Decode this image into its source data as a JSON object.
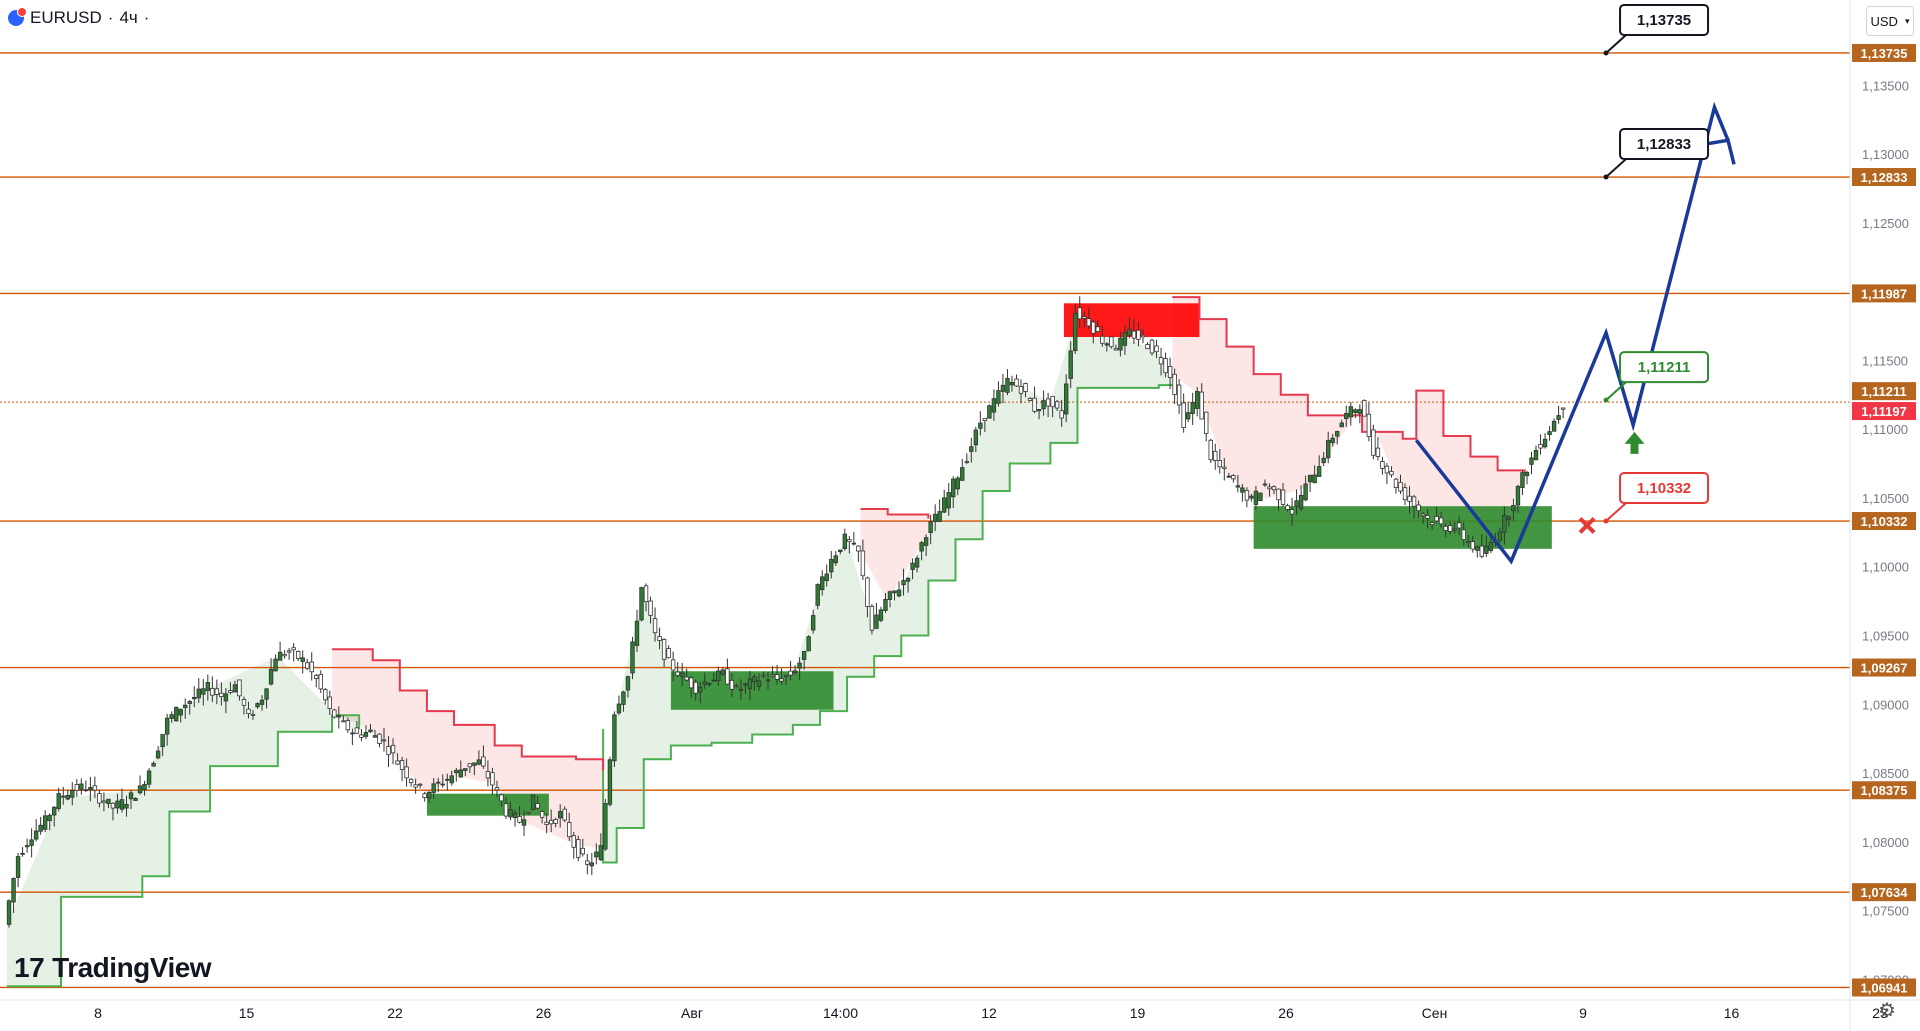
{
  "header": {
    "symbol": "EURUSD",
    "separator": "·",
    "interval": "4ч",
    "currency": "USD"
  },
  "branding": {
    "logo_text": "TradingView",
    "logo_mark": "17"
  },
  "colors": {
    "level_line": "#d35400",
    "level_label_bg": "#b5651d",
    "bull": "#2e8b2e",
    "bear": "#e53935",
    "zone_green": "#2e8b2e",
    "zone_red": "#ff0000",
    "projection": "#1a3a9a",
    "current_price_bg": "#f23645"
  },
  "icons": {
    "settings": "gear-icon",
    "logo": "tradingview-logo-icon",
    "target_arrow": "up-arrow-icon",
    "stop": "cross-icon"
  },
  "chart_data": {
    "type": "candlestick",
    "y_ticks": [
      "1,13500",
      "1,13000",
      "1,12500",
      "1,11500",
      "1,11000",
      "1,10500",
      "1,10000",
      "1,09500",
      "1,09000",
      "1,08500",
      "1,08000",
      "1,07500",
      "1,07000"
    ],
    "y_tick_values": [
      1.135,
      1.13,
      1.125,
      1.115,
      1.11,
      1.105,
      1.1,
      1.095,
      1.09,
      1.085,
      1.08,
      1.075,
      1.07
    ],
    "ylim": [
      1.0685,
      1.1412
    ],
    "x_ticks": [
      "8",
      "15",
      "22",
      "26",
      "Авг",
      "14:00",
      "12",
      "19",
      "26",
      "Сен",
      "9",
      "16",
      "23"
    ],
    "levels": [
      {
        "label": "1,13735",
        "value": 1.13735
      },
      {
        "label": "1,12833",
        "value": 1.12833
      },
      {
        "label": "1,11987",
        "value": 1.11987
      },
      {
        "label": "1,10332",
        "value": 1.10332
      },
      {
        "label": "1,09267",
        "value": 1.09267
      },
      {
        "label": "1,08375",
        "value": 1.08375
      },
      {
        "label": "1,07634",
        "value": 1.07634
      },
      {
        "label": "1,06941",
        "value": 1.06941
      }
    ],
    "price_labels": [
      {
        "label": "1,11211",
        "value": 1.11211,
        "style": "green"
      },
      {
        "label": "1,11197",
        "value": 1.11197,
        "style": "current"
      }
    ],
    "callouts": [
      {
        "label": "1,13735",
        "value": 1.13735,
        "style": "black"
      },
      {
        "label": "1,12833",
        "value": 1.12833,
        "style": "black"
      },
      {
        "label": "1,11211",
        "value": 1.11211,
        "style": "green"
      },
      {
        "label": "1,10332",
        "value": 1.10332,
        "style": "red"
      }
    ],
    "close_path": [
      [
        0,
        1.074
      ],
      [
        1,
        1.079
      ],
      [
        2,
        1.0805
      ],
      [
        3,
        1.0815
      ],
      [
        4,
        1.0832
      ],
      [
        5,
        1.0838
      ],
      [
        6,
        1.084
      ],
      [
        7,
        1.0832
      ],
      [
        8,
        1.0825
      ],
      [
        9,
        1.083
      ],
      [
        10,
        1.0838
      ],
      [
        11,
        1.086
      ],
      [
        12,
        1.0888
      ],
      [
        13,
        1.0898
      ],
      [
        14,
        1.0905
      ],
      [
        15,
        1.0912
      ],
      [
        16,
        1.0906
      ],
      [
        17,
        1.0914
      ],
      [
        18,
        1.089
      ],
      [
        19,
        1.0905
      ],
      [
        20,
        1.0935
      ],
      [
        21,
        1.0938
      ],
      [
        22,
        1.0932
      ],
      [
        23,
        1.0918
      ],
      [
        24,
        1.0895
      ],
      [
        25,
        1.0885
      ],
      [
        26,
        1.0878
      ],
      [
        27,
        1.088
      ],
      [
        28,
        1.0872
      ],
      [
        29,
        1.0858
      ],
      [
        30,
        1.0845
      ],
      [
        31,
        1.0835
      ],
      [
        32,
        1.0842
      ],
      [
        33,
        1.0848
      ],
      [
        34,
        1.0855
      ],
      [
        35,
        1.0858
      ],
      [
        36,
        1.0842
      ],
      [
        37,
        1.0822
      ],
      [
        38,
        1.0815
      ],
      [
        39,
        1.083
      ],
      [
        40,
        1.0812
      ],
      [
        41,
        1.082
      ],
      [
        42,
        1.0798
      ],
      [
        43,
        1.0782
      ],
      [
        44,
        1.0795
      ],
      [
        45,
        1.0895
      ],
      [
        46,
        1.092
      ],
      [
        47,
        1.0985
      ],
      [
        48,
        1.095
      ],
      [
        49,
        1.093
      ],
      [
        50,
        1.092
      ],
      [
        51,
        1.0912
      ],
      [
        52,
        1.0918
      ],
      [
        53,
        1.0922
      ],
      [
        54,
        1.091
      ],
      [
        55,
        1.0915
      ],
      [
        56,
        1.092
      ],
      [
        57,
        1.0918
      ],
      [
        58,
        1.0922
      ],
      [
        59,
        1.0935
      ],
      [
        60,
        1.0985
      ],
      [
        61,
        1.1005
      ],
      [
        62,
        1.102
      ],
      [
        63,
        1.101
      ],
      [
        64,
        1.0955
      ],
      [
        65,
        1.0975
      ],
      [
        66,
        1.0985
      ],
      [
        67,
        1.1
      ],
      [
        68,
        1.1025
      ],
      [
        69,
        1.104
      ],
      [
        70,
        1.106
      ],
      [
        71,
        1.108
      ],
      [
        72,
        1.1105
      ],
      [
        73,
        1.112
      ],
      [
        74,
        1.1135
      ],
      [
        75,
        1.113
      ],
      [
        76,
        1.1115
      ],
      [
        77,
        1.112
      ],
      [
        78,
        1.111
      ],
      [
        79,
        1.1185
      ],
      [
        80,
        1.1178
      ],
      [
        81,
        1.1165
      ],
      [
        82,
        1.116
      ],
      [
        83,
        1.117
      ],
      [
        84,
        1.1165
      ],
      [
        85,
        1.1155
      ],
      [
        86,
        1.114
      ],
      [
        87,
        1.1105
      ],
      [
        88,
        1.1125
      ],
      [
        89,
        1.108
      ],
      [
        90,
        1.1068
      ],
      [
        91,
        1.1058
      ],
      [
        92,
        1.1048
      ],
      [
        93,
        1.106
      ],
      [
        94,
        1.1052
      ],
      [
        95,
        1.104
      ],
      [
        96,
        1.1058
      ],
      [
        97,
        1.1075
      ],
      [
        98,
        1.1095
      ],
      [
        99,
        1.111
      ],
      [
        100,
        1.1118
      ],
      [
        101,
        1.1085
      ],
      [
        102,
        1.107
      ],
      [
        103,
        1.1055
      ],
      [
        104,
        1.1045
      ],
      [
        105,
        1.1035
      ],
      [
        106,
        1.103
      ],
      [
        107,
        1.1028
      ],
      [
        108,
        1.1018
      ],
      [
        109,
        1.1008
      ],
      [
        110,
        1.1022
      ],
      [
        111,
        1.104
      ],
      [
        112,
        1.1065
      ],
      [
        113,
        1.1085
      ],
      [
        114,
        1.11
      ],
      [
        115,
        1.1118
      ]
    ],
    "stop_line_support": [
      [
        0,
        1.0695
      ],
      [
        4,
        1.076
      ],
      [
        10,
        1.0775
      ],
      [
        12,
        1.0822
      ],
      [
        15,
        1.0855
      ],
      [
        20,
        1.088
      ],
      [
        24,
        1.0892
      ],
      [
        26,
        1.0892
      ],
      [
        26,
        1.0882
      ],
      [
        44,
        1.0882
      ],
      [
        44,
        1.0785
      ],
      [
        45,
        1.081
      ],
      [
        47,
        1.086
      ],
      [
        49,
        1.087
      ],
      [
        52,
        1.0872
      ],
      [
        55,
        1.0878
      ],
      [
        58,
        1.0885
      ],
      [
        60,
        1.0895
      ],
      [
        62,
        1.092
      ],
      [
        64,
        1.0935
      ],
      [
        66,
        1.095
      ],
      [
        68,
        1.099
      ],
      [
        70,
        1.102
      ],
      [
        72,
        1.1055
      ],
      [
        74,
        1.1075
      ],
      [
        77,
        1.109
      ],
      [
        79,
        1.109
      ],
      [
        79,
        1.113
      ],
      [
        85,
        1.1132
      ],
      [
        86,
        1.1132
      ]
    ],
    "stop_line_resistance": [
      [
        24,
        1.094
      ],
      [
        27,
        1.0932
      ],
      [
        29,
        1.091
      ],
      [
        31,
        1.0895
      ],
      [
        33,
        1.0885
      ],
      [
        36,
        1.087
      ],
      [
        38,
        1.0862
      ],
      [
        42,
        1.086
      ],
      [
        44,
        1.0852
      ],
      [
        63,
        1.1042
      ],
      [
        65,
        1.1038
      ],
      [
        68,
        1.1035
      ],
      [
        86,
        1.1196
      ],
      [
        88,
        1.118
      ],
      [
        90,
        1.116
      ],
      [
        92,
        1.114
      ],
      [
        94,
        1.1125
      ],
      [
        96,
        1.111
      ],
      [
        100,
        1.1098
      ],
      [
        103,
        1.1093
      ],
      [
        104,
        1.1128
      ],
      [
        106,
        1.1095
      ],
      [
        108,
        1.108
      ],
      [
        110,
        1.107
      ],
      [
        112,
        1.1068
      ]
    ],
    "zones": [
      {
        "x0": 78,
        "x1": 88,
        "y0": 1.11915,
        "y1": 1.1167,
        "color": "red"
      },
      {
        "x0": 31,
        "x1": 40,
        "y0": 1.0835,
        "y1": 1.0819,
        "color": "green"
      },
      {
        "x0": 49,
        "x1": 61,
        "y0": 1.0924,
        "y1": 1.0896,
        "color": "green"
      },
      {
        "x0": 92,
        "x1": 114,
        "y0": 1.1044,
        "y1": 1.1013,
        "color": "green"
      }
    ],
    "projection": [
      [
        104,
        1.1092
      ],
      [
        111,
        1.1004
      ],
      [
        118,
        1.117
      ],
      [
        120,
        1.1103
      ],
      [
        126,
        1.1334
      ],
      [
        127,
        1.131
      ]
    ],
    "range_x": [
      -0.5,
      136
    ],
    "candle_wick_pct": 0.22
  }
}
